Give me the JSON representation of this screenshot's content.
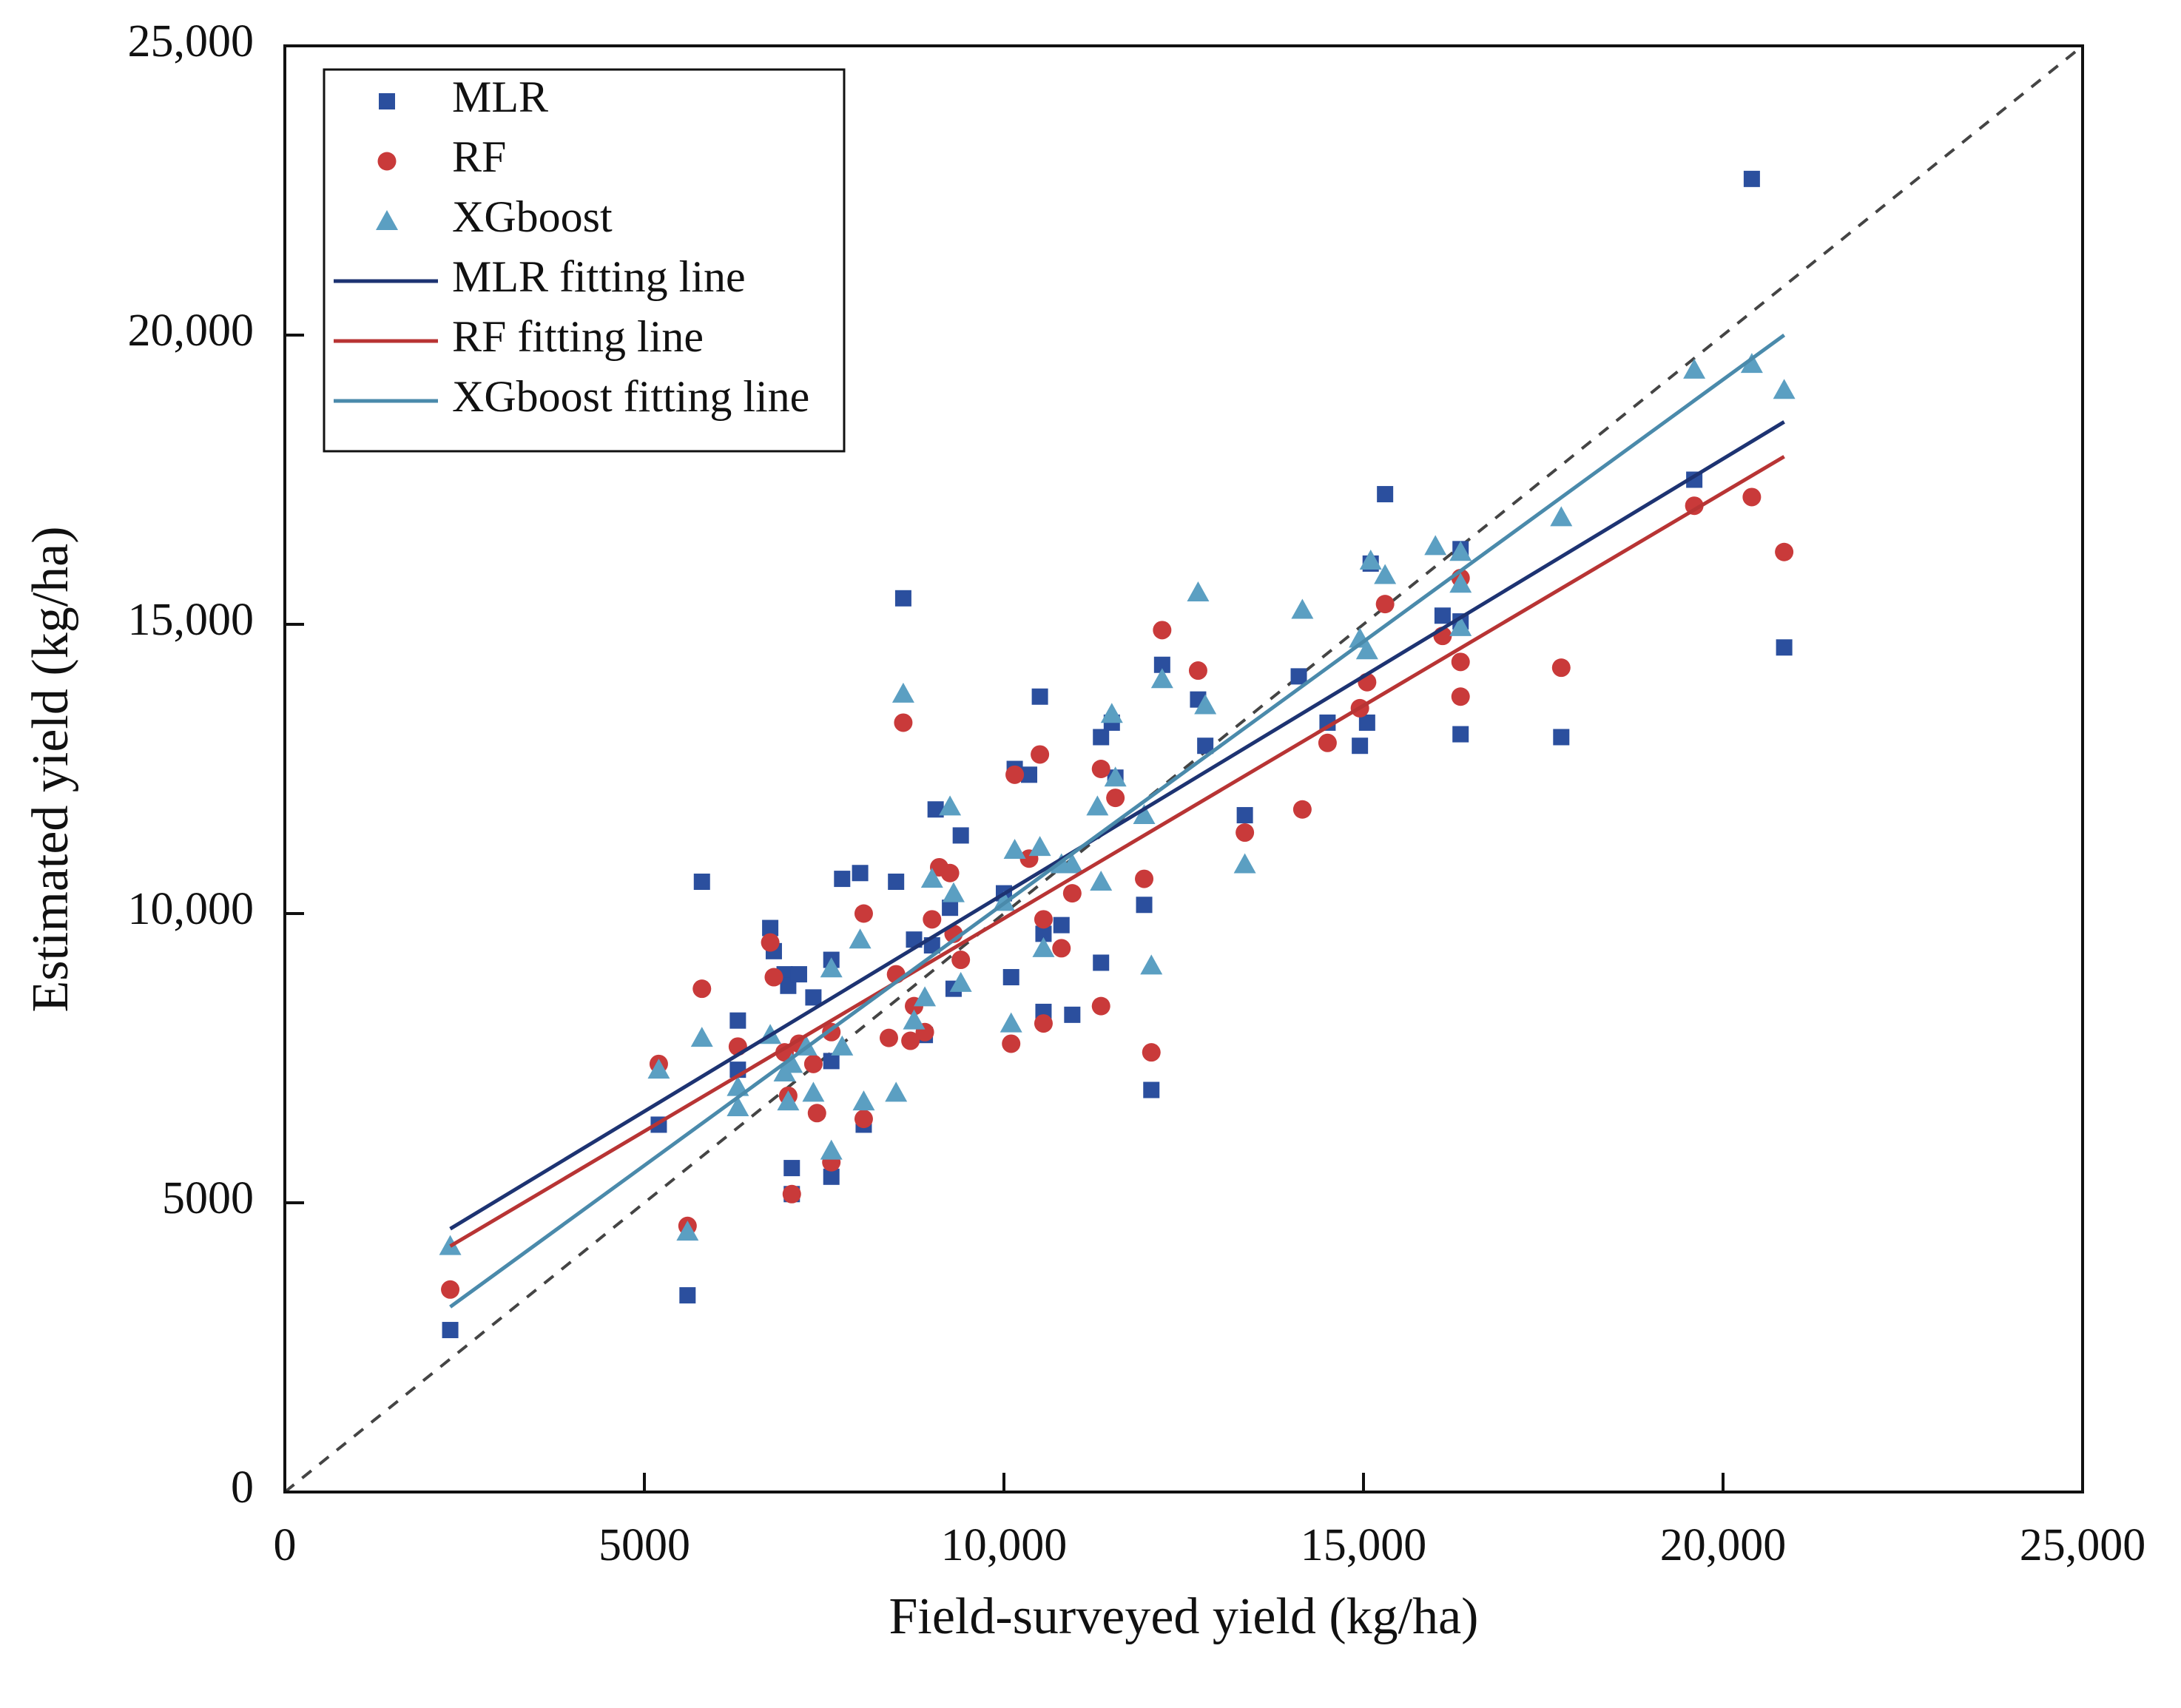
{
  "chart_data": {
    "type": "scatter",
    "x_label": "Field-surveyed yield (kg/ha)",
    "y_label": "Estimated yield (kg/ha)",
    "xlim": [
      0,
      25000
    ],
    "ylim": [
      0,
      25000
    ],
    "xticks": [
      0,
      5000,
      {
        "value": 10000,
        "label": "10,000"
      },
      {
        "value": 15000,
        "label": "15,000"
      },
      {
        "value": 20000,
        "label": "20,000"
      },
      {
        "value": 25000,
        "label": "25,000"
      }
    ],
    "yticks": [
      0,
      5000,
      {
        "value": 10000,
        "label": "10,000"
      },
      {
        "value": 15000,
        "label": "15,000"
      },
      {
        "value": 20000,
        "label": "20,000"
      },
      {
        "value": 25000,
        "label": "25,000"
      }
    ],
    "reference_line": "dashed",
    "legend": "upper left",
    "series": [
      {
        "name": "MLR",
        "color": "#2b4f9e",
        "marker": "square",
        "x": [
          2300,
          5200,
          5600,
          5800,
          6300,
          6300,
          6750,
          6800,
          6950,
          7000,
          7050,
          7050,
          7150,
          7350,
          7600,
          7600,
          7600,
          7750,
          8000,
          8050,
          8500,
          8600,
          8750,
          8900,
          9000,
          9050,
          9250,
          9300,
          9400,
          10100,
          10000,
          10150,
          10350,
          10500,
          10550,
          10550,
          10800,
          10950,
          11350,
          11350,
          11500,
          11550,
          11950,
          12050,
          12200,
          12700,
          12800,
          13350,
          14100,
          14500,
          14950,
          15050,
          15100,
          15300,
          16100,
          16350,
          16350,
          16350,
          17750,
          19600,
          20400,
          20850
        ],
        "values": [
          2800,
          6350,
          3400,
          10550,
          8150,
          7300,
          9750,
          9350,
          8950,
          8750,
          5600,
          5150,
          8950,
          8550,
          5450,
          7450,
          9200,
          10600,
          10700,
          6350,
          10550,
          15450,
          9550,
          7900,
          9450,
          11800,
          10100,
          8700,
          11350,
          8900,
          10350,
          12500,
          12400,
          13750,
          8300,
          9650,
          9800,
          8250,
          13050,
          9150,
          13300,
          12350,
          10150,
          6950,
          14300,
          13700,
          12900,
          11700,
          14100,
          13300,
          12900,
          13300,
          16050,
          17250,
          15150,
          16300,
          15050,
          13100,
          13050,
          17500,
          22700,
          14600
        ]
      },
      {
        "name": "RF",
        "color": "#c93a3a",
        "marker": "circle",
        "x": [
          2300,
          5200,
          5600,
          5800,
          6300,
          6750,
          6800,
          6950,
          7000,
          7050,
          7150,
          7350,
          7400,
          7600,
          7600,
          8050,
          8050,
          8400,
          8500,
          8600,
          8700,
          8750,
          8900,
          9000,
          9100,
          9250,
          9300,
          9400,
          10100,
          10150,
          10350,
          10500,
          10550,
          10550,
          10800,
          10950,
          11350,
          11350,
          11550,
          11950,
          12050,
          12200,
          12700,
          13350,
          14150,
          14500,
          14950,
          15050,
          15300,
          16100,
          16350,
          16350,
          16350,
          17750,
          19600,
          20400,
          20850
        ],
        "values": [
          3500,
          7400,
          4600,
          8700,
          7700,
          9500,
          8900,
          7600,
          6850,
          5150,
          7750,
          7400,
          6550,
          5700,
          7950,
          6450,
          10000,
          7850,
          8950,
          13300,
          7800,
          8400,
          7950,
          9900,
          10800,
          10700,
          9650,
          9200,
          7750,
          12400,
          10950,
          12750,
          9900,
          8100,
          9400,
          10350,
          12500,
          8400,
          12000,
          10600,
          7600,
          14900,
          14200,
          11400,
          11800,
          12950,
          13550,
          14000,
          15350,
          14800,
          15800,
          14350,
          13750,
          14250,
          17050,
          17200,
          16250
        ]
      },
      {
        "name": "XGboost",
        "color": "#5b9fc2",
        "marker": "triangle",
        "x": [
          2300,
          5200,
          5600,
          5800,
          6300,
          6300,
          6750,
          6950,
          7000,
          7050,
          7250,
          7350,
          7600,
          7600,
          7750,
          8050,
          8000,
          8500,
          8600,
          8750,
          8900,
          9000,
          9250,
          9300,
          9400,
          10000,
          10100,
          10150,
          10500,
          10550,
          10800,
          10950,
          11300,
          11350,
          11500,
          11550,
          11950,
          12050,
          12200,
          12700,
          12800,
          13350,
          14150,
          14950,
          15050,
          15100,
          15300,
          16000,
          16350,
          16350,
          16350,
          17750,
          19600,
          20400,
          20850
        ],
        "values": [
          4250,
          7300,
          4500,
          7850,
          6650,
          7000,
          7900,
          7250,
          6750,
          7400,
          7700,
          6900,
          5900,
          9050,
          7700,
          6750,
          9550,
          6900,
          13800,
          8150,
          8550,
          10600,
          11850,
          10350,
          8800,
          10200,
          8100,
          11100,
          11150,
          9400,
          10850,
          10850,
          11850,
          10550,
          13450,
          12350,
          11700,
          9100,
          14050,
          15550,
          13600,
          10850,
          15250,
          14750,
          14550,
          16100,
          15850,
          16350,
          16250,
          15700,
          14950,
          16850,
          19400,
          19500,
          19050
        ]
      },
      {
        "name": "MLR fitting line",
        "color": "#1d3372",
        "marker": "line",
        "x": [
          2300,
          20850
        ],
        "values": [
          4550,
          18500
        ]
      },
      {
        "name": "RF fitting line",
        "color": "#b83434",
        "marker": "line",
        "x": [
          2300,
          20850
        ],
        "values": [
          4250,
          17900
        ]
      },
      {
        "name": "XGboost fitting line",
        "color": "#4a8aab",
        "marker": "line",
        "x": [
          2300,
          20850
        ],
        "values": [
          3200,
          20000
        ]
      }
    ]
  }
}
